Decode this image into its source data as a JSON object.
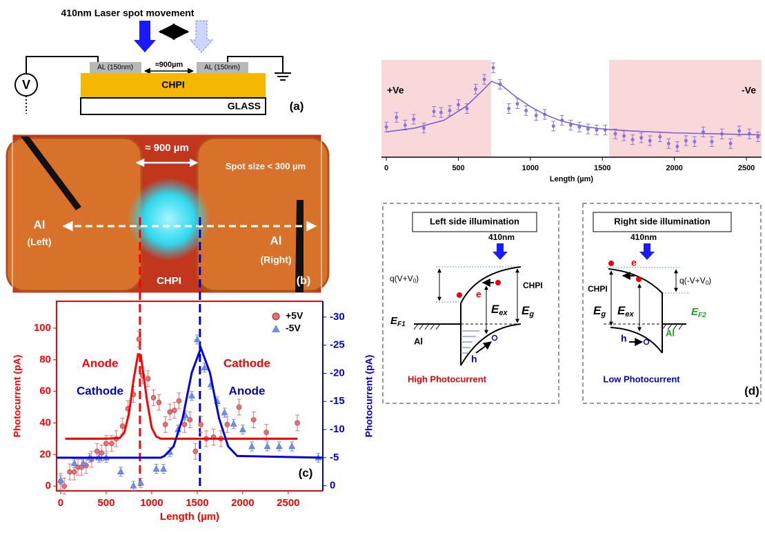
{
  "schematic": {
    "title": "410nm Laser spot movement",
    "source": "V",
    "left_contact": "AL (150nm)",
    "right_contact": "AL (150nm)",
    "gap": "≈900µm",
    "film": "CHPI",
    "substrate": "GLASS",
    "panel_label": "(a)"
  },
  "photo": {
    "gap": "≈ 900 µm",
    "spot": "Spot size < 300 µm",
    "left_metal": "Al",
    "left_side": "(Left)",
    "right_metal": "Al",
    "right_side": "(Right)",
    "film": "CHPI",
    "panel_label": "(b)"
  },
  "chart_data": [
    {
      "type": "scatter",
      "xlabel": "Length (µm)",
      "ylabel": "Photocurrent (pA)",
      "y2label": "Photocurrent (pA)",
      "panel_label": "(c)",
      "xlim": [
        -45,
        2880
      ],
      "xticks": [
        0,
        500,
        1000,
        1500,
        2000,
        2500
      ],
      "ylim": [
        -3,
        117
      ],
      "yticks": [
        0,
        20,
        40,
        60,
        80,
        100
      ],
      "y2lim": [
        0.9,
        -32.8
      ],
      "y2ticks": [
        0,
        -5,
        -10,
        -15,
        -20,
        -25,
        -30
      ],
      "legend": "upper right",
      "series": [
        {
          "name": "+5V",
          "color": "#e87070",
          "marker": "circle",
          "x": [
            0,
            40,
            100,
            150,
            190,
            230,
            280,
            340,
            400,
            450,
            500,
            560,
            610,
            680,
            740,
            800,
            860,
            900,
            960,
            1020,
            1080,
            1150,
            1200,
            1250,
            1300,
            1360,
            1420,
            1480,
            1540,
            1600,
            1680,
            1760,
            1830,
            1960,
            2120,
            2260,
            2600
          ],
          "values": [
            3,
            0,
            9,
            9,
            12,
            12,
            13,
            17,
            22,
            21,
            27,
            27,
            30,
            38,
            49,
            58,
            93,
            70,
            68,
            56,
            53,
            39,
            47,
            48,
            54,
            39,
            42,
            22,
            39,
            30,
            31,
            30,
            39,
            50,
            42,
            34,
            40
          ],
          "error": 5
        },
        {
          "name": "-5V",
          "color": "#6f8fe8",
          "marker": "triangle",
          "axis": "y2",
          "x": [
            0,
            150,
            250,
            320,
            420,
            500,
            660,
            800,
            880,
            1050,
            1130,
            1200,
            1290,
            1370,
            1440,
            1500,
            1580,
            1650,
            1720,
            1800,
            1900,
            2000,
            2100,
            2270,
            2400,
            2540,
            2830
          ],
          "values": [
            -1,
            -4,
            -4,
            -5,
            -5,
            -5,
            -2.5,
            0,
            -0.5,
            -3,
            -3,
            -6,
            -10,
            -12.5,
            -16,
            -26,
            -21,
            -18,
            -15,
            -13,
            -11,
            -10,
            -7,
            -7,
            -7,
            -7,
            -5
          ],
          "error": 0.8
        }
      ],
      "fits": [
        {
          "color": "#ff0000",
          "x": [
            50,
            500,
            650,
            700,
            750,
            800,
            850,
            880,
            950,
            1000,
            1050,
            1100,
            1200,
            1400,
            2600
          ],
          "values": [
            30,
            30,
            30.5,
            34,
            45.8,
            67,
            83.5,
            83,
            53.7,
            37,
            31.4,
            30,
            30,
            30,
            30
          ]
        },
        {
          "color": "#0000dd",
          "axis": "y2",
          "x": [
            -45,
            1100,
            1140,
            1240,
            1340,
            1440,
            1540,
            1640,
            1740,
            1840,
            1940,
            2880
          ],
          "values": [
            -5,
            -5,
            -5.3,
            -7,
            -12,
            -20.1,
            -24.5,
            -20.1,
            -12,
            -7,
            -5.3,
            -5
          ]
        }
      ],
      "markers": [
        {
          "x": 871,
          "color": "#ff0000"
        },
        {
          "x": 1530,
          "color": "#0000cc"
        }
      ],
      "annotations": [
        {
          "text": "Anode",
          "color": "#ff0000"
        },
        {
          "text": "Cathode",
          "color": "#0000cc"
        },
        {
          "text": "Cathode",
          "color": "#ff0000"
        },
        {
          "text": "Anode",
          "color": "#0000cc"
        }
      ]
    },
    {
      "type": "scatter",
      "xlabel": "Length (µm)",
      "xlim": [
        -34,
        2605
      ],
      "xticks": [
        0,
        500,
        1000,
        1500,
        2000,
        2500
      ],
      "ylim": [
        0,
        100
      ],
      "regions": [
        {
          "range": [
            -34,
            727
          ],
          "text": "+Ve"
        },
        {
          "range": [
            1547,
            2605
          ],
          "text": "-Ve"
        }
      ],
      "region_color": "#f8d8d8",
      "series": [
        {
          "color": "#8c72dc",
          "marker": "circle",
          "x": [
            0,
            70,
            130,
            190,
            260,
            330,
            380,
            440,
            500,
            560,
            620,
            680,
            742,
            790,
            850,
            910,
            970,
            1040,
            1100,
            1160,
            1220,
            1280,
            1340,
            1400,
            1460,
            1520,
            1590,
            1650,
            1710,
            1770,
            1830,
            1900,
            1960,
            2020,
            2080,
            2140,
            2200,
            2260,
            2330,
            2390,
            2450,
            2520,
            2580
          ],
          "values": [
            31,
            41,
            33,
            39,
            30,
            47,
            46,
            48,
            54,
            50,
            70,
            80,
            92,
            75,
            50,
            55,
            48,
            43,
            44,
            32,
            38,
            33,
            31,
            29,
            28,
            28,
            24,
            22,
            18,
            20,
            17,
            21,
            14,
            11,
            17,
            16,
            26,
            16,
            24,
            14,
            27,
            24,
            21
          ],
          "error": 5
        }
      ],
      "fits": [
        {
          "color": "#7b5fd6",
          "x": [
            0,
            200,
            400,
            550,
            650,
            730,
            800,
            900,
            1000,
            1100,
            1200,
            1300,
            1400,
            1500,
            1700,
            2000,
            2300,
            2600
          ],
          "values": [
            26,
            30,
            38,
            52,
            66,
            78,
            74,
            62,
            52,
            44,
            38,
            34,
            31,
            29,
            27,
            25,
            24,
            23
          ]
        }
      ]
    }
  ],
  "diagrams": {
    "left": {
      "title": "Left side illumination",
      "wavelength": "410nm",
      "barrier": [
        "q(V+V",
        "0",
        ")"
      ],
      "electron": "e",
      "film": "CHPI",
      "exciton": [
        "E",
        "ex"
      ],
      "gap": [
        "E",
        "g"
      ],
      "fermi": [
        "E",
        "F1"
      ],
      "metal": "Al",
      "hole": "h",
      "result": "High Photocurrent"
    },
    "right": {
      "title": "Right side illumination",
      "wavelength": "410nm",
      "barrier": [
        "q(-V+V",
        "0",
        ")"
      ],
      "electron": "e",
      "film": "CHPI",
      "gap": [
        "E",
        "g"
      ],
      "exciton": [
        "E",
        "ex"
      ],
      "fermi": [
        "E",
        "F2"
      ],
      "metal": "Al",
      "hole": "h",
      "result": "Low Photocurrent"
    },
    "panel_label": "(d)"
  }
}
